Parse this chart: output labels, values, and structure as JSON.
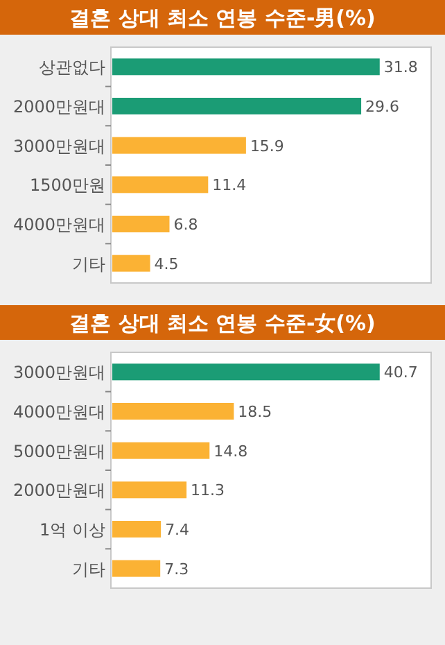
{
  "chart_data": [
    {
      "type": "bar",
      "orientation": "horizontal",
      "title": "결혼 상대 최소 연봉 수준-男(%)",
      "categories": [
        "상관없다",
        "2000만원대",
        "3000만원대",
        "1500만원",
        "4000만원대",
        "기타"
      ],
      "values": [
        31.8,
        29.6,
        15.9,
        11.4,
        6.8,
        4.5
      ],
      "colors": [
        "#1b9c75",
        "#1b9c75",
        "#fbb234",
        "#fbb234",
        "#fbb234",
        "#fbb234"
      ],
      "data_labels": true
    },
    {
      "type": "bar",
      "orientation": "horizontal",
      "title": "결혼 상대 최소 연봉 수준-女(%)",
      "categories": [
        "3000만원대",
        "4000만원대",
        "5000만원대",
        "2000만원대",
        "1억 이상",
        "기타"
      ],
      "values": [
        40.7,
        18.5,
        14.8,
        11.3,
        7.4,
        7.3
      ],
      "colors": [
        "#1b9c75",
        "#fbb234",
        "#fbb234",
        "#fbb234",
        "#fbb234",
        "#fbb234"
      ],
      "data_labels": true
    }
  ]
}
